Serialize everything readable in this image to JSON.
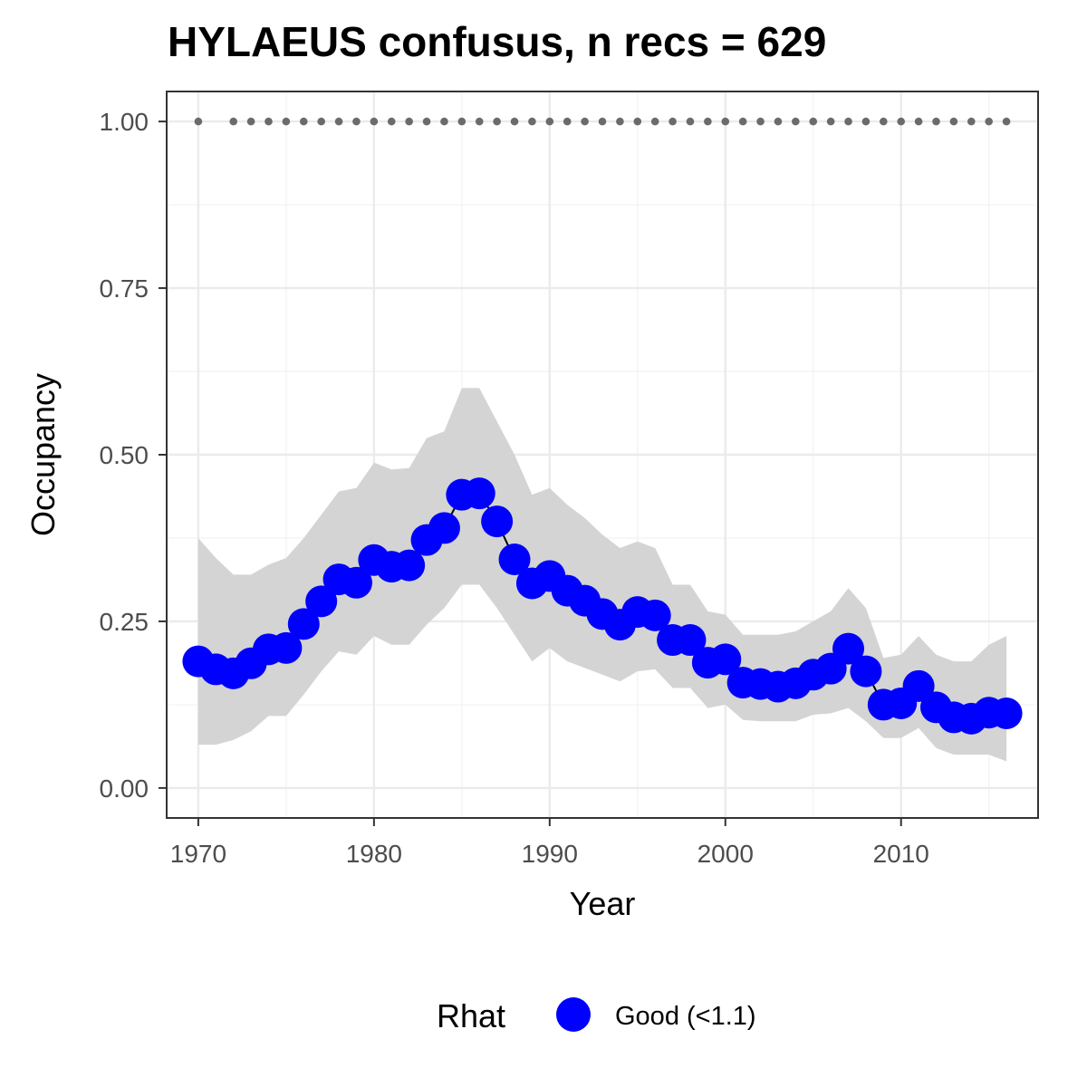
{
  "chart_data": {
    "type": "line",
    "title": "HYLAEUS confusus, n recs = 629",
    "xlabel": "Year",
    "ylabel": "Occupancy",
    "xlim": [
      1968.2,
      2017.8
    ],
    "ylim": [
      -0.045,
      1.045
    ],
    "x_ticks": [
      1970,
      1980,
      1990,
      2000,
      2010
    ],
    "x_tick_labels": [
      "1970",
      "1980",
      "1990",
      "2000",
      "2010"
    ],
    "y_ticks": [
      0,
      0.25,
      0.5,
      0.75,
      1.0
    ],
    "y_tick_labels": [
      "0.00",
      "0.25",
      "0.50",
      "0.75",
      "1.00"
    ],
    "grid": true,
    "years": [
      1970,
      1971,
      1972,
      1973,
      1974,
      1975,
      1976,
      1977,
      1978,
      1979,
      1980,
      1981,
      1982,
      1983,
      1984,
      1985,
      1986,
      1987,
      1988,
      1989,
      1990,
      1991,
      1992,
      1993,
      1994,
      1995,
      1996,
      1997,
      1998,
      1999,
      2000,
      2001,
      2002,
      2003,
      2004,
      2005,
      2006,
      2007,
      2008,
      2009,
      2010,
      2011,
      2012,
      2013,
      2014,
      2015,
      2016
    ],
    "series": [
      {
        "values": [
          0.19,
          0.178,
          0.172,
          0.187,
          0.208,
          0.21,
          0.246,
          0.28,
          0.313,
          0.308,
          0.342,
          0.332,
          0.334,
          0.372,
          0.39,
          0.44,
          0.442,
          0.4,
          0.343,
          0.307,
          0.318,
          0.296,
          0.281,
          0.261,
          0.245,
          0.264,
          0.259,
          0.222,
          0.222,
          0.188,
          0.193,
          0.158,
          0.156,
          0.152,
          0.157,
          0.17,
          0.179,
          0.209,
          0.175,
          0.125,
          0.127,
          0.153,
          0.121,
          0.106,
          0.104,
          0.113,
          0.112
        ],
        "lower": [
          0.065,
          0.065,
          0.072,
          0.085,
          0.108,
          0.108,
          0.14,
          0.175,
          0.205,
          0.2,
          0.228,
          0.215,
          0.215,
          0.245,
          0.27,
          0.305,
          0.305,
          0.27,
          0.23,
          0.19,
          0.21,
          0.19,
          0.18,
          0.17,
          0.16,
          0.175,
          0.178,
          0.15,
          0.15,
          0.12,
          0.125,
          0.102,
          0.1,
          0.1,
          0.1,
          0.11,
          0.112,
          0.12,
          0.1,
          0.075,
          0.075,
          0.09,
          0.06,
          0.05,
          0.05,
          0.05,
          0.04
        ],
        "upper": [
          0.375,
          0.345,
          0.32,
          0.32,
          0.335,
          0.345,
          0.375,
          0.41,
          0.445,
          0.45,
          0.488,
          0.478,
          0.48,
          0.525,
          0.535,
          0.6,
          0.6,
          0.55,
          0.5,
          0.44,
          0.45,
          0.425,
          0.405,
          0.38,
          0.36,
          0.37,
          0.36,
          0.305,
          0.305,
          0.265,
          0.26,
          0.23,
          0.23,
          0.23,
          0.235,
          0.25,
          0.265,
          0.3,
          0.27,
          0.195,
          0.2,
          0.228,
          0.2,
          0.19,
          0.19,
          0.215,
          0.228
        ],
        "color": "#0000ff"
      }
    ],
    "ribbon_color": "#d4d4d4",
    "rhat_marker_years": [
      1970,
      1972,
      1973,
      1974,
      1975,
      1976,
      1977,
      1978,
      1979,
      1980,
      1981,
      1982,
      1983,
      1984,
      1985,
      1986,
      1987,
      1988,
      1989,
      1990,
      1991,
      1992,
      1993,
      1994,
      1995,
      1996,
      1997,
      1998,
      1999,
      2000,
      2001,
      2002,
      2003,
      2004,
      2005,
      2006,
      2007,
      2008,
      2009,
      2010,
      2011,
      2012,
      2013,
      2014,
      2015,
      2016
    ],
    "rhat_marker_value": 1.0,
    "rhat_marker_color": "#6b6b6b",
    "legend": {
      "position": "bottom",
      "title": "Rhat",
      "label": "Good (<1.1)",
      "color": "#0000ff"
    }
  }
}
